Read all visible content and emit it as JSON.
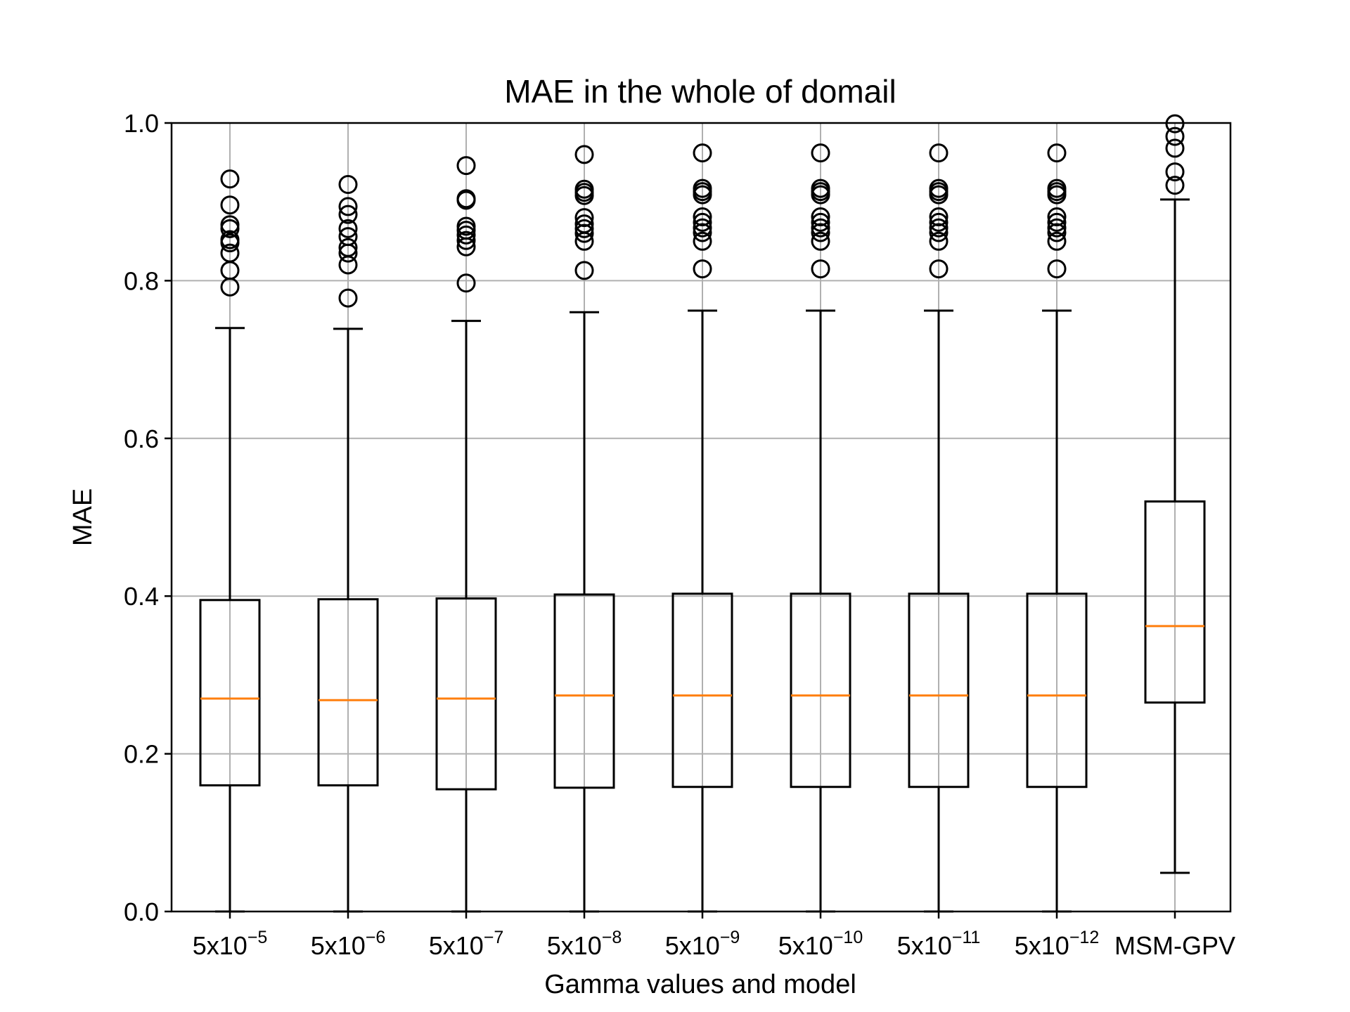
{
  "chart_data": {
    "type": "boxplot",
    "title": "MAE in the whole of domail",
    "xlabel": "Gamma values and model",
    "ylabel": "MAE",
    "ylim": [
      0.0,
      1.0
    ],
    "yticks": [
      "0.0",
      "0.2",
      "0.4",
      "0.6",
      "0.8",
      "1.0"
    ],
    "grid": true,
    "median_color": "#ff7f0e",
    "categories": [
      {
        "base": "5x10",
        "exp": "−5"
      },
      {
        "base": "5x10",
        "exp": "−6"
      },
      {
        "base": "5x10",
        "exp": "−7"
      },
      {
        "base": "5x10",
        "exp": "−8"
      },
      {
        "base": "5x10",
        "exp": "−9"
      },
      {
        "base": "5x10",
        "exp": "−10"
      },
      {
        "base": "5x10",
        "exp": "−11"
      },
      {
        "base": "5x10",
        "exp": "−12"
      },
      {
        "base": "MSM-GPV",
        "exp": ""
      }
    ],
    "boxes": [
      {
        "whisker_low": 0.0,
        "q1": 0.16,
        "median": 0.27,
        "q3": 0.395,
        "whisker_high": 0.74,
        "fliers": [
          0.929,
          0.896,
          0.871,
          0.866,
          0.852,
          0.848,
          0.835,
          0.813,
          0.792
        ]
      },
      {
        "whisker_low": 0.0,
        "q1": 0.16,
        "median": 0.268,
        "q3": 0.396,
        "whisker_high": 0.739,
        "fliers": [
          0.922,
          0.894,
          0.884,
          0.866,
          0.856,
          0.842,
          0.835,
          0.82,
          0.778
        ]
      },
      {
        "whisker_low": 0.0,
        "q1": 0.155,
        "median": 0.27,
        "q3": 0.397,
        "whisker_high": 0.749,
        "fliers": [
          0.946,
          0.904,
          0.902,
          0.869,
          0.864,
          0.858,
          0.851,
          0.843,
          0.797
        ]
      },
      {
        "whisker_low": 0.0,
        "q1": 0.157,
        "median": 0.274,
        "q3": 0.402,
        "whisker_high": 0.76,
        "fliers": [
          0.96,
          0.916,
          0.912,
          0.908,
          0.88,
          0.872,
          0.866,
          0.86,
          0.85,
          0.813
        ]
      },
      {
        "whisker_low": 0.0,
        "q1": 0.158,
        "median": 0.274,
        "q3": 0.403,
        "whisker_high": 0.762,
        "fliers": [
          0.962,
          0.917,
          0.913,
          0.909,
          0.881,
          0.874,
          0.867,
          0.861,
          0.85,
          0.815
        ]
      },
      {
        "whisker_low": 0.0,
        "q1": 0.158,
        "median": 0.274,
        "q3": 0.403,
        "whisker_high": 0.762,
        "fliers": [
          0.962,
          0.917,
          0.913,
          0.909,
          0.881,
          0.874,
          0.867,
          0.861,
          0.85,
          0.815
        ]
      },
      {
        "whisker_low": 0.0,
        "q1": 0.158,
        "median": 0.274,
        "q3": 0.403,
        "whisker_high": 0.762,
        "fliers": [
          0.962,
          0.917,
          0.913,
          0.909,
          0.881,
          0.874,
          0.867,
          0.861,
          0.85,
          0.815
        ]
      },
      {
        "whisker_low": 0.0,
        "q1": 0.158,
        "median": 0.274,
        "q3": 0.403,
        "whisker_high": 0.762,
        "fliers": [
          0.962,
          0.917,
          0.913,
          0.909,
          0.881,
          0.874,
          0.867,
          0.861,
          0.85,
          0.815
        ]
      },
      {
        "whisker_low": 0.049,
        "q1": 0.265,
        "median": 0.362,
        "q3": 0.52,
        "whisker_high": 0.903,
        "fliers": [
          0.999,
          0.983,
          0.968,
          0.938,
          0.921
        ]
      }
    ]
  }
}
